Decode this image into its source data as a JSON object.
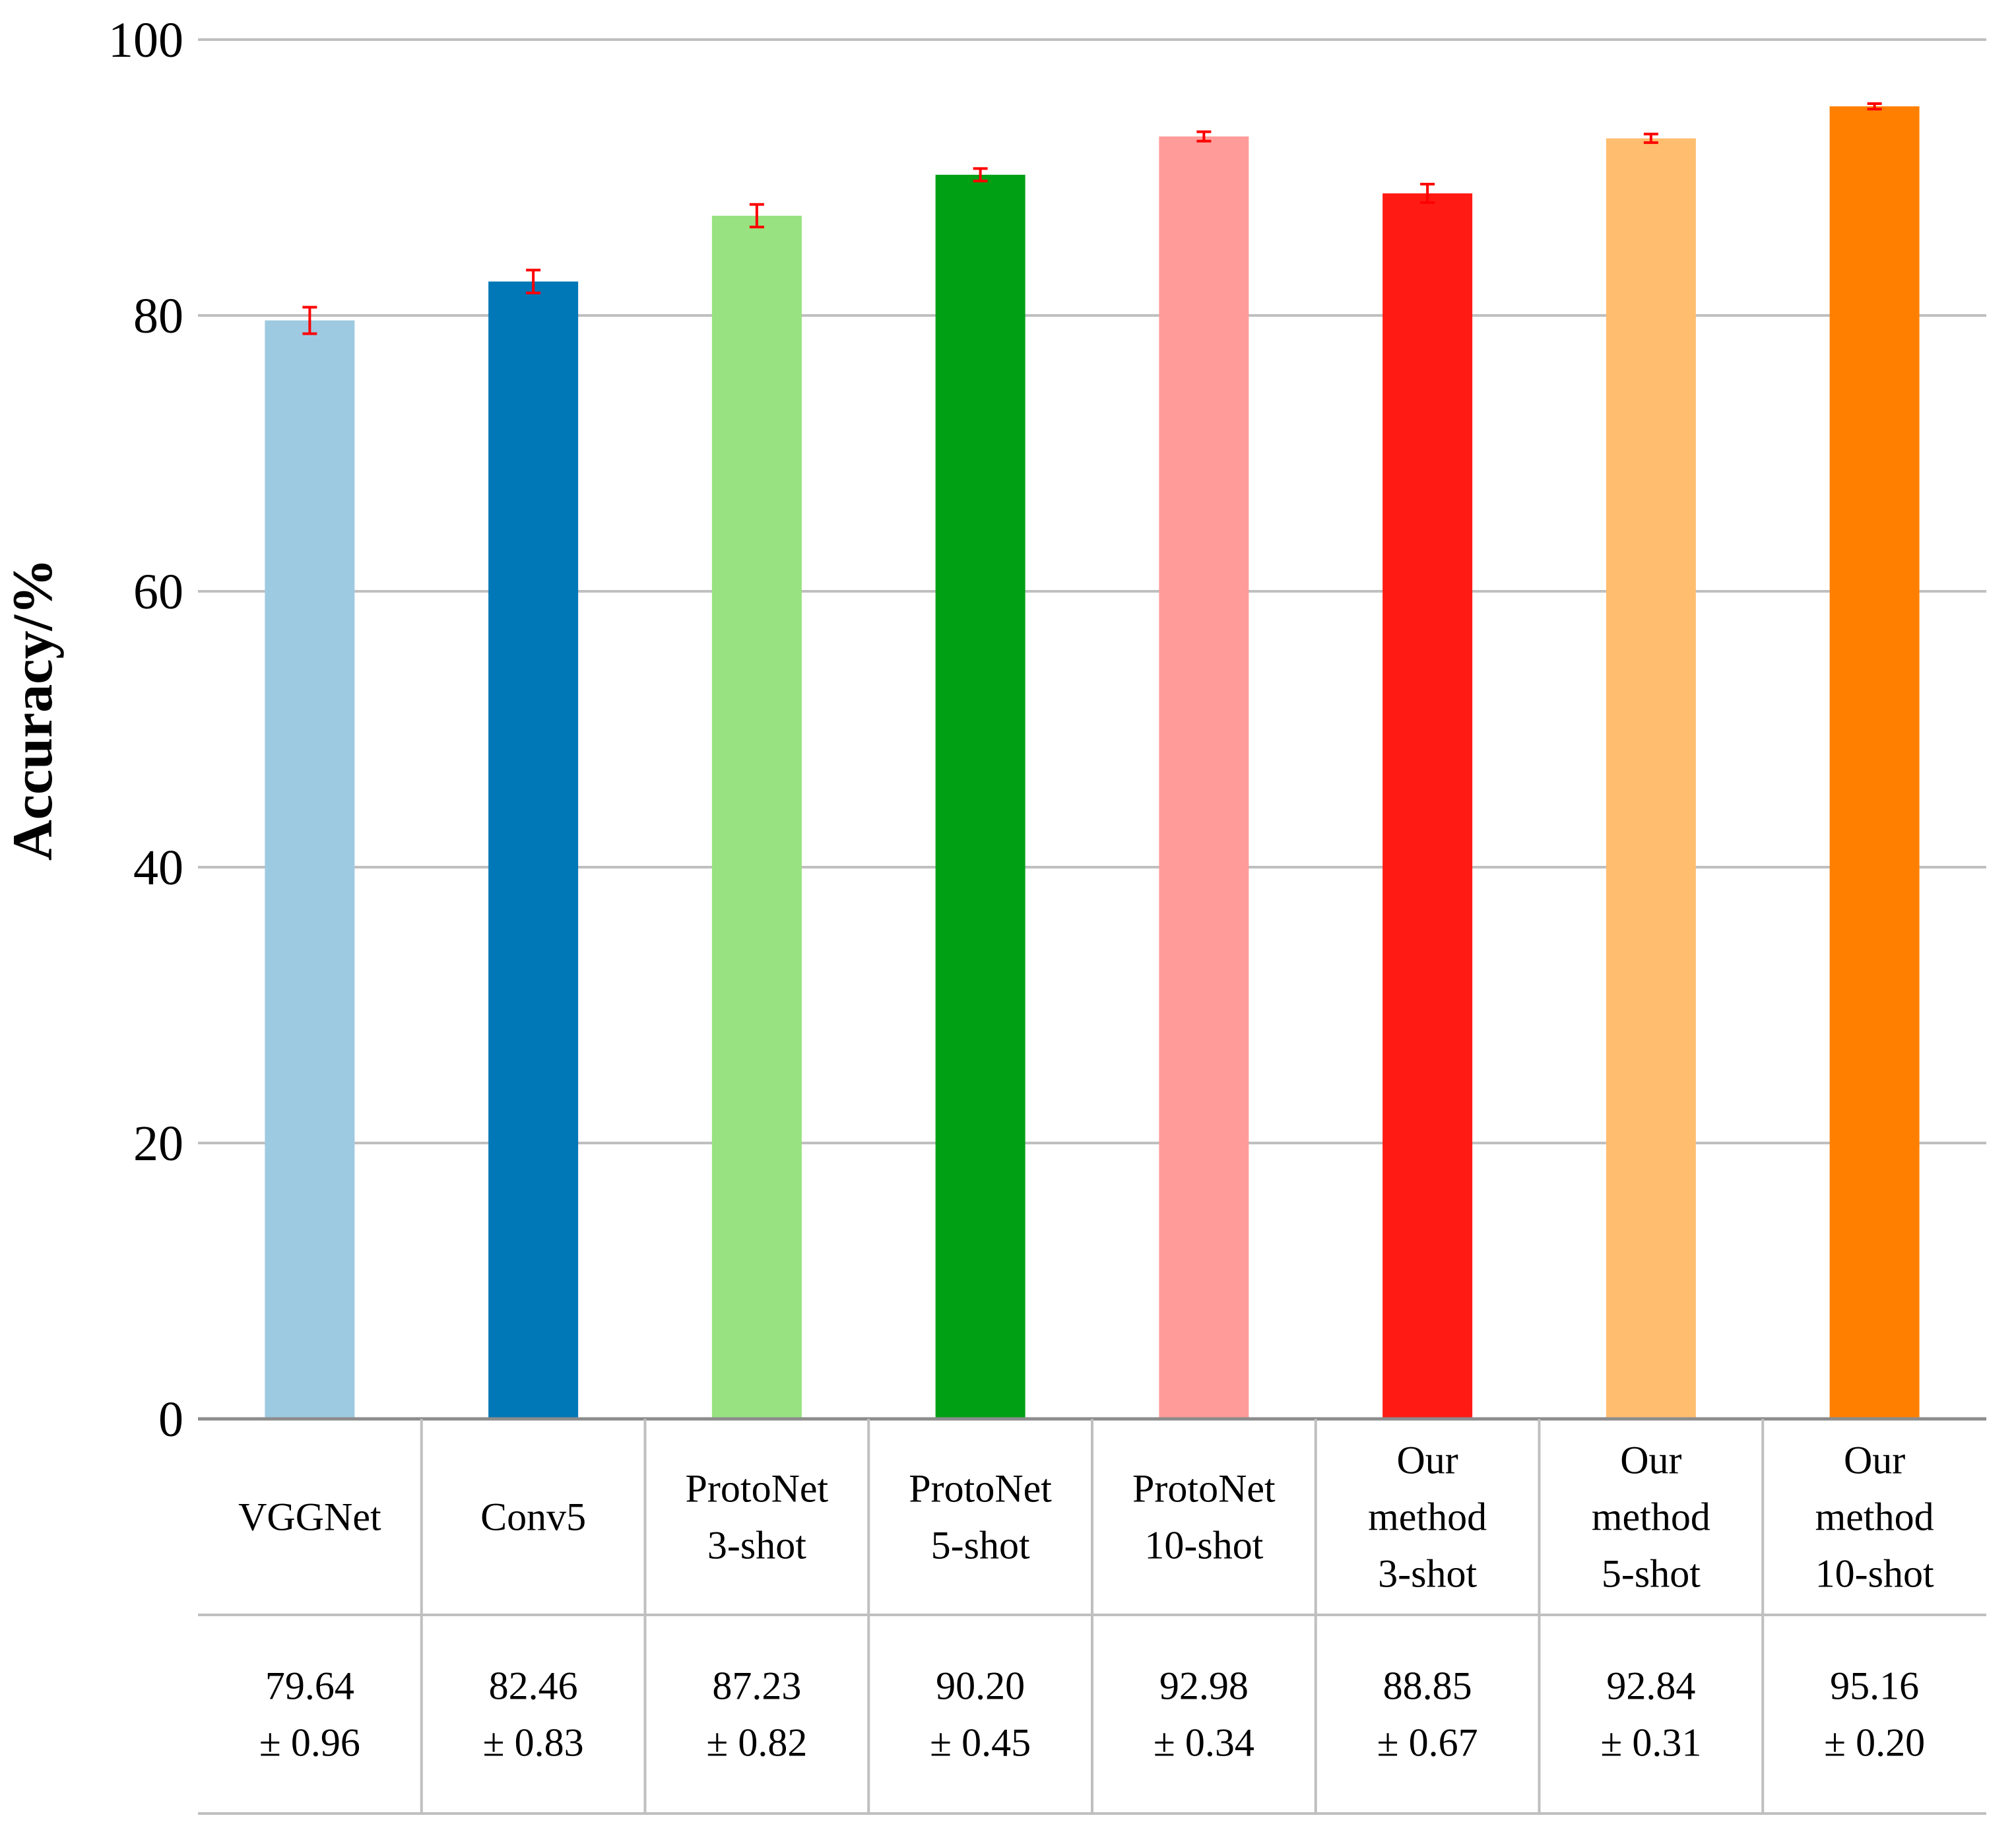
{
  "chart_data": {
    "type": "bar",
    "title": "",
    "xlabel": "",
    "ylabel": "Accuracy/%",
    "ylim": [
      0,
      100
    ],
    "yticks": [
      "0",
      "20",
      "40",
      "60",
      "80",
      "100"
    ],
    "grid": true,
    "categories": [
      [
        "VGGNet"
      ],
      [
        "Conv5"
      ],
      [
        "ProtoNet",
        "3-shot"
      ],
      [
        "ProtoNet",
        "5-shot"
      ],
      [
        "ProtoNet",
        "10-shot"
      ],
      [
        "Our",
        "method",
        "3-shot"
      ],
      [
        "Our",
        "method",
        "5-shot"
      ],
      [
        "Our",
        "method",
        "10-shot"
      ]
    ],
    "values": [
      79.64,
      82.46,
      87.23,
      90.2,
      92.98,
      88.85,
      92.84,
      95.16
    ],
    "errors": [
      0.96,
      0.83,
      0.82,
      0.45,
      0.34,
      0.67,
      0.31,
      0.2
    ],
    "value_labels": [
      [
        "79.64",
        "± 0.96"
      ],
      [
        "82.46",
        "± 0.83"
      ],
      [
        "87.23",
        "± 0.82"
      ],
      [
        "90.20",
        "± 0.45"
      ],
      [
        "92.98",
        "± 0.34"
      ],
      [
        "88.85",
        "± 0.67"
      ],
      [
        "92.84",
        "± 0.31"
      ],
      [
        "95.16",
        "± 0.20"
      ]
    ],
    "colors": [
      "#a6cee3",
      "#1f78b4",
      "#b2df8a",
      "#33a02c",
      "#fb9a99",
      "#e31a1c",
      "#fdbf6f",
      "#ff7f00"
    ],
    "bar_colors": [
      "#9ecae1",
      "#0077b6",
      "#98e281",
      "#00a014",
      "#ff9c9a",
      "#ff1a14",
      "#ffbe6f",
      "#ff8000"
    ],
    "error_bar_color": "#ff0000",
    "grid_color": "#bfbfbf"
  }
}
